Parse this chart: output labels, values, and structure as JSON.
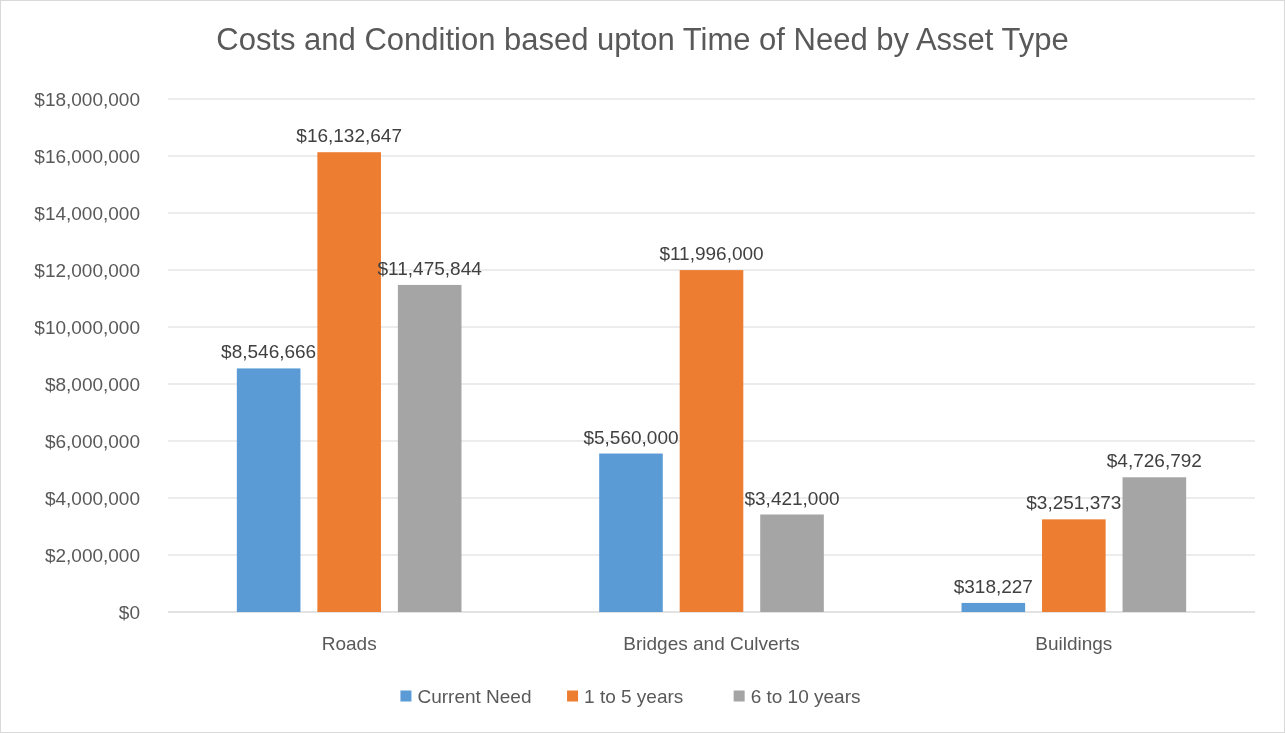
{
  "chart_data": {
    "type": "bar",
    "title": "Costs and Condition based upton Time of Need by Asset Type",
    "categories": [
      "Roads",
      "Bridges and Culverts",
      "Buildings"
    ],
    "series": [
      {
        "name": "Current Need",
        "color": "#5b9bd5",
        "values": [
          8546666,
          5560000,
          318227
        ],
        "value_labels": [
          "$8,546,666",
          "$5,560,000",
          "$318,227"
        ]
      },
      {
        "name": "1 to 5 years",
        "color": "#ed7d31",
        "values": [
          16132647,
          11996000,
          3251373
        ],
        "value_labels": [
          "$16,132,647",
          "$11,996,000",
          "$3,251,373"
        ]
      },
      {
        "name": "6 to 10 years",
        "color": "#a5a5a5",
        "values": [
          11475844,
          3421000,
          4726792
        ],
        "value_labels": [
          "$11,475,844",
          "$3,421,000",
          "$4,726,792"
        ]
      }
    ],
    "ylim": [
      0,
      18000000
    ],
    "yticks": [
      {
        "value": 0,
        "label": "$0"
      },
      {
        "value": 2000000,
        "label": "$2,000,000"
      },
      {
        "value": 4000000,
        "label": "$4,000,000"
      },
      {
        "value": 6000000,
        "label": "$6,000,000"
      },
      {
        "value": 8000000,
        "label": "$8,000,000"
      },
      {
        "value": 10000000,
        "label": "$10,000,000"
      },
      {
        "value": 12000000,
        "label": "$12,000,000"
      },
      {
        "value": 14000000,
        "label": "$14,000,000"
      },
      {
        "value": 16000000,
        "label": "$16,000,000"
      },
      {
        "value": 18000000,
        "label": "$18,000,000"
      }
    ],
    "grid": "y",
    "legend": "bottom"
  }
}
